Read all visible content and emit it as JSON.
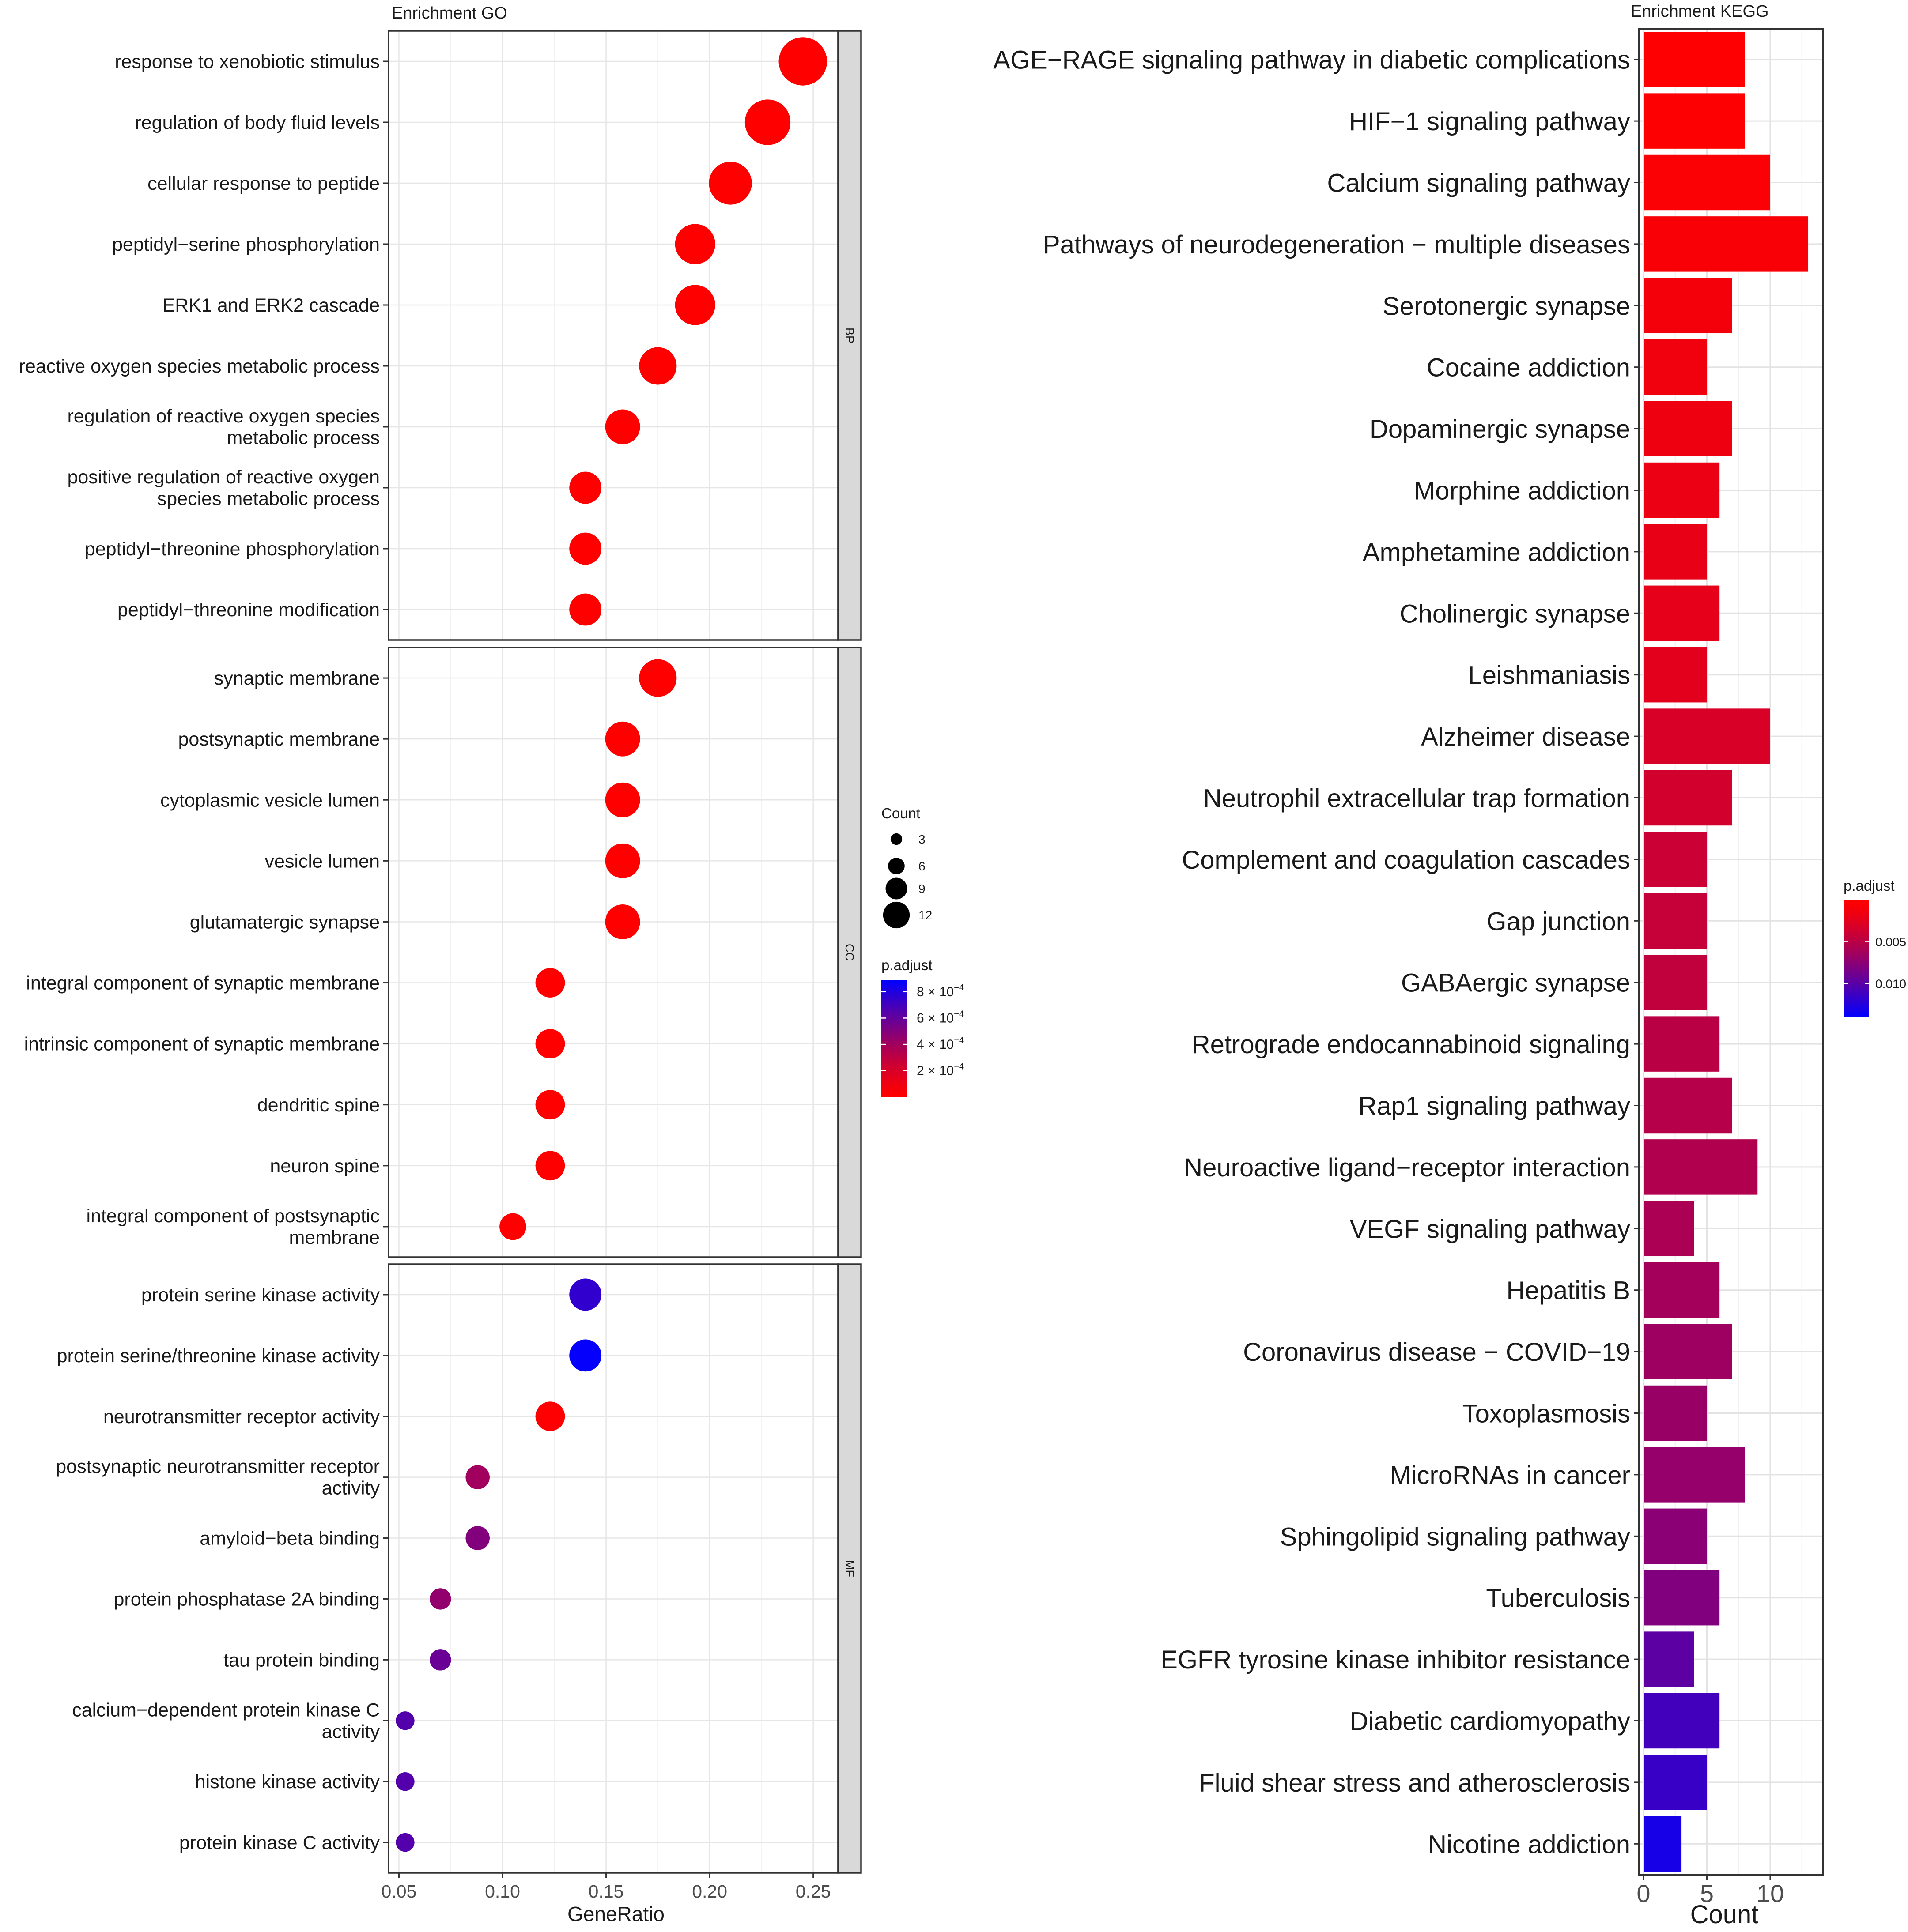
{
  "chart_data": [
    {
      "type": "scatter",
      "title": "Enrichment GO",
      "xlabel": "GeneRatio",
      "ylabel": "",
      "xlim": [
        0.045,
        0.262
      ],
      "x_ticks": [
        0.05,
        0.1,
        0.15,
        0.2,
        0.25
      ],
      "x_tick_labels": [
        "0.05",
        "0.10",
        "0.15",
        "0.20",
        "0.25"
      ],
      "grid": true,
      "legend_position": "right",
      "facets": [
        {
          "strip": "BP",
          "terms": [
            {
              "label": "response to xenobiotic stimulus",
              "gene_ratio": 0.245,
              "count": 14,
              "p_adjust": 1e-06
            },
            {
              "label": "regulation of body fluid levels",
              "gene_ratio": 0.228,
              "count": 13,
              "p_adjust": 1e-06
            },
            {
              "label": "cellular response to peptide",
              "gene_ratio": 0.21,
              "count": 12,
              "p_adjust": 1e-06
            },
            {
              "label": "peptidyl−serine phosphorylation",
              "gene_ratio": 0.193,
              "count": 11,
              "p_adjust": 1e-06
            },
            {
              "label": "ERK1 and ERK2 cascade",
              "gene_ratio": 0.193,
              "count": 11,
              "p_adjust": 1e-06
            },
            {
              "label": "reactive oxygen species metabolic process",
              "gene_ratio": 0.175,
              "count": 10,
              "p_adjust": 1e-06
            },
            {
              "label": "regulation of reactive oxygen species\nmetabolic process",
              "gene_ratio": 0.158,
              "count": 9,
              "p_adjust": 1e-06
            },
            {
              "label": "positive regulation of reactive oxygen\nspecies metabolic process",
              "gene_ratio": 0.14,
              "count": 8,
              "p_adjust": 1e-06
            },
            {
              "label": "peptidyl−threonine phosphorylation",
              "gene_ratio": 0.14,
              "count": 8,
              "p_adjust": 1e-06
            },
            {
              "label": "peptidyl−threonine modification",
              "gene_ratio": 0.14,
              "count": 8,
              "p_adjust": 1e-06
            }
          ]
        },
        {
          "strip": "CC",
          "terms": [
            {
              "label": "synaptic membrane",
              "gene_ratio": 0.175,
              "count": 10,
              "p_adjust": 1e-06
            },
            {
              "label": "postsynaptic membrane",
              "gene_ratio": 0.158,
              "count": 9,
              "p_adjust": 1e-06
            },
            {
              "label": "cytoplasmic vesicle lumen",
              "gene_ratio": 0.158,
              "count": 9,
              "p_adjust": 1e-06
            },
            {
              "label": "vesicle lumen",
              "gene_ratio": 0.158,
              "count": 9,
              "p_adjust": 1e-06
            },
            {
              "label": "glutamatergic synapse",
              "gene_ratio": 0.158,
              "count": 9,
              "p_adjust": 1e-06
            },
            {
              "label": "integral component of synaptic membrane",
              "gene_ratio": 0.123,
              "count": 7,
              "p_adjust": 1e-06
            },
            {
              "label": "intrinsic component of synaptic membrane",
              "gene_ratio": 0.123,
              "count": 7,
              "p_adjust": 1e-06
            },
            {
              "label": "dendritic spine",
              "gene_ratio": 0.123,
              "count": 7,
              "p_adjust": 1e-06
            },
            {
              "label": "neuron spine",
              "gene_ratio": 0.123,
              "count": 7,
              "p_adjust": 1e-06
            },
            {
              "label": "integral component of postsynaptic\nmembrane",
              "gene_ratio": 0.105,
              "count": 6,
              "p_adjust": 1e-06
            }
          ]
        },
        {
          "strip": "MF",
          "terms": [
            {
              "label": "protein serine kinase activity",
              "gene_ratio": 0.14,
              "count": 8,
              "p_adjust": 0.00075
            },
            {
              "label": "protein serine/threonine kinase activity",
              "gene_ratio": 0.14,
              "count": 8,
              "p_adjust": 0.00088
            },
            {
              "label": "neurotransmitter receptor activity",
              "gene_ratio": 0.123,
              "count": 7,
              "p_adjust": 1e-05
            },
            {
              "label": "postsynaptic neurotransmitter receptor\nactivity",
              "gene_ratio": 0.088,
              "count": 5,
              "p_adjust": 0.0004
            },
            {
              "label": "amyloid−beta binding",
              "gene_ratio": 0.088,
              "count": 5,
              "p_adjust": 0.0005
            },
            {
              "label": "protein phosphatase 2A binding",
              "gene_ratio": 0.07,
              "count": 4,
              "p_adjust": 0.00045
            },
            {
              "label": "tau protein binding",
              "gene_ratio": 0.07,
              "count": 4,
              "p_adjust": 0.00058
            },
            {
              "label": "calcium−dependent protein kinase C\nactivity",
              "gene_ratio": 0.053,
              "count": 3,
              "p_adjust": 0.00065
            },
            {
              "label": "histone kinase activity",
              "gene_ratio": 0.053,
              "count": 3,
              "p_adjust": 0.00065
            },
            {
              "label": "protein kinase C activity",
              "gene_ratio": 0.053,
              "count": 3,
              "p_adjust": 0.00065
            }
          ]
        }
      ],
      "legend": {
        "size_title": "Count",
        "size_values": [
          3,
          6,
          9,
          12
        ],
        "size_labels": [
          "3",
          "6",
          "9",
          "12"
        ],
        "color_title": "p.adjust",
        "color_range": [
          1e-06,
          0.00089
        ],
        "color_ticks": [
          0.0008,
          0.0006,
          0.0004,
          0.0002
        ],
        "color_tick_labels": [
          {
            "mantissa": "8 × 10",
            "exponent": "−4"
          },
          {
            "mantissa": "6 × 10",
            "exponent": "−4"
          },
          {
            "mantissa": "4 × 10",
            "exponent": "−4"
          },
          {
            "mantissa": "2 × 10",
            "exponent": "−4"
          }
        ],
        "color_low": "#ff0000",
        "color_high": "#0000ff"
      }
    },
    {
      "type": "bar",
      "orientation": "horizontal",
      "title": "Enrichment KEGG",
      "xlabel": "Count",
      "ylabel": "",
      "xlim": [
        0,
        13.8
      ],
      "x_ticks": [
        0,
        5,
        10
      ],
      "x_tick_labels": [
        "0",
        "5",
        "10"
      ],
      "grid": true,
      "legend_position": "right",
      "categories": [
        "AGE−RAGE signaling pathway in diabetic complications",
        "HIF−1 signaling pathway",
        "Calcium signaling pathway",
        "Pathways of neurodegeneration − multiple diseases",
        "Serotonergic synapse",
        "Cocaine addiction",
        "Dopaminergic synapse",
        "Morphine addiction",
        "Amphetamine addiction",
        "Cholinergic synapse",
        "Leishmaniasis",
        "Alzheimer disease",
        "Neutrophil extracellular trap formation",
        "Complement and coagulation cascades",
        "Gap junction",
        "GABAergic synapse",
        "Retrograde endocannabinoid signaling",
        "Rap1 signaling pathway",
        "Neuroactive ligand−receptor interaction",
        "VEGF signaling pathway",
        "Hepatitis B",
        "Coronavirus disease − COVID−19",
        "Toxoplasmosis",
        "MicroRNAs in cancer",
        "Sphingolipid signaling pathway",
        "Tuberculosis",
        "EGFR tyrosine kinase inhibitor resistance",
        "Diabetic cardiomyopathy",
        "Fluid shear stress and atherosclerosis",
        "Nicotine addiction"
      ],
      "values": [
        8,
        8,
        10,
        13,
        7,
        5,
        7,
        6,
        5,
        6,
        5,
        10,
        7,
        5,
        5,
        5,
        6,
        7,
        9,
        4,
        6,
        7,
        5,
        8,
        5,
        6,
        4,
        6,
        5,
        3
      ],
      "p_adjust": [
        0.0003,
        0.0004,
        0.0006,
        0.0008,
        0.0012,
        0.0015,
        0.0017,
        0.0019,
        0.0021,
        0.0023,
        0.0025,
        0.0032,
        0.0036,
        0.004,
        0.0043,
        0.0046,
        0.005,
        0.0052,
        0.0055,
        0.0058,
        0.0062,
        0.0065,
        0.0068,
        0.007,
        0.0075,
        0.008,
        0.0098,
        0.011,
        0.0115,
        0.013
      ],
      "legend": {
        "color_title": "p.adjust",
        "color_range": [
          0.0001,
          0.014
        ],
        "color_ticks": [
          0.005,
          0.01
        ],
        "color_tick_labels": [
          "0.005",
          "0.010"
        ],
        "color_low": "#ff0000",
        "color_high": "#0000ff"
      }
    }
  ]
}
